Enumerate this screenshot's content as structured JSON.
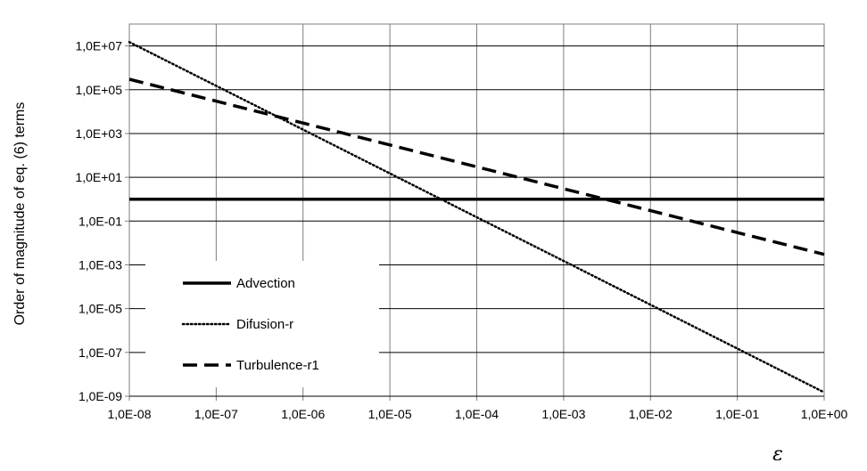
{
  "chart_data": {
    "type": "line",
    "title": "",
    "xlabel": "ε",
    "ylabel": "Order of magnitude of eq. (6) terms",
    "xscale": "log",
    "yscale": "log",
    "xlim": [
      1e-08,
      1
    ],
    "ylim": [
      1e-09,
      100000000.0
    ],
    "grid": true,
    "legend_position": "bottom-left",
    "x_ticks": [
      "1,0E-08",
      "1,0E-07",
      "1,0E-06",
      "1,0E-05",
      "1,0E-04",
      "1,0E-03",
      "1,0E-02",
      "1,0E-01",
      "1,0E+00"
    ],
    "y_ticks": [
      "1,0E-09",
      "1,0E-07",
      "1,0E-05",
      "1,0E-03",
      "1,0E-01",
      "1,0E+01",
      "1,0E+03",
      "1,0E+05",
      "1,0E+07"
    ],
    "series": [
      {
        "name": "Advection",
        "style": "solid",
        "x": [
          1e-08,
          1
        ],
        "y": [
          1,
          1
        ]
      },
      {
        "name": "Difusion-r",
        "style": "dotted",
        "x": [
          1e-08,
          1e-07,
          1e-06,
          1e-05,
          0.0001,
          0.001,
          0.01,
          0.1,
          1
        ],
        "y": [
          15000000.0,
          150000.0,
          1500.0,
          15,
          0.15,
          0.0015,
          1.5e-05,
          1.5e-07,
          1.5e-09
        ]
      },
      {
        "name": "Turbulence-r1",
        "style": "dashed",
        "x": [
          1e-08,
          1e-07,
          1e-06,
          1e-05,
          0.0001,
          0.001,
          0.01,
          0.1,
          1
        ],
        "y": [
          300000.0,
          30000.0,
          3000.0,
          300,
          30,
          3,
          0.3,
          0.03,
          0.003
        ]
      }
    ]
  }
}
